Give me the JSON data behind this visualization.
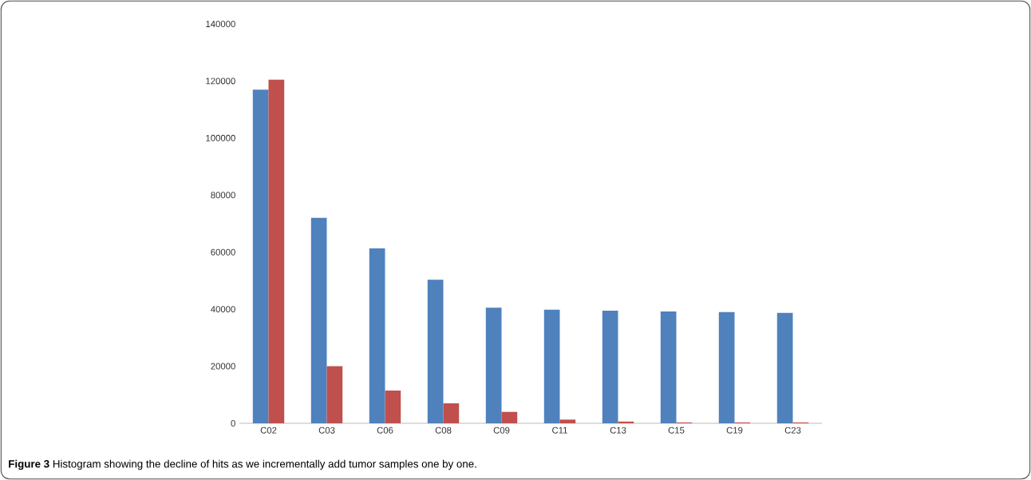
{
  "chart_data": {
    "type": "bar",
    "categories": [
      "C02",
      "C03",
      "C06",
      "C08",
      "C09",
      "C11",
      "C13",
      "C15",
      "C19",
      "C23"
    ],
    "series": [
      {
        "color": "#4f81bd",
        "values": [
          117000,
          72000,
          61300,
          50300,
          40500,
          39800,
          39500,
          39200,
          39000,
          38700
        ]
      },
      {
        "color": "#c0504d",
        "values": [
          120500,
          20000,
          11500,
          7000,
          4000,
          1300,
          600,
          300,
          300,
          300
        ]
      }
    ],
    "ylim": [
      0,
      140000
    ],
    "yticks": [
      0,
      20000,
      40000,
      60000,
      80000,
      100000,
      120000,
      140000
    ],
    "annotations": [
      "**Figure 3** Histogram showing the decline of hits as we incrementally add tumor samples one by one."
    ]
  }
}
